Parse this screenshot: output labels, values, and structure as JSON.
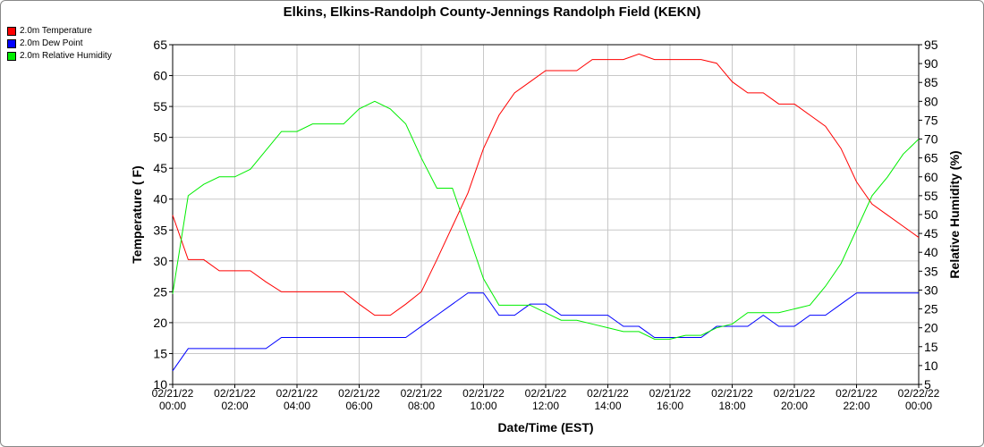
{
  "chart_data": {
    "type": "line",
    "title": "Elkins, Elkins-Randolph County-Jennings Randolph Field (KEKN)",
    "xlabel": "Date/Time (EST)",
    "ylabel": "Temperature ( F)",
    "y2label": "Relative Humidity (%)",
    "legend": "top-left",
    "grid": true,
    "x": [
      "2022-02-21T00:00",
      "2022-02-21T00:30",
      "2022-02-21T01:00",
      "2022-02-21T01:30",
      "2022-02-21T02:00",
      "2022-02-21T02:30",
      "2022-02-21T03:00",
      "2022-02-21T03:30",
      "2022-02-21T04:00",
      "2022-02-21T04:30",
      "2022-02-21T05:00",
      "2022-02-21T05:30",
      "2022-02-21T06:00",
      "2022-02-21T06:30",
      "2022-02-21T07:00",
      "2022-02-21T07:30",
      "2022-02-21T08:00",
      "2022-02-21T08:30",
      "2022-02-21T09:00",
      "2022-02-21T09:30",
      "2022-02-21T10:00",
      "2022-02-21T10:30",
      "2022-02-21T11:00",
      "2022-02-21T11:30",
      "2022-02-21T12:00",
      "2022-02-21T12:30",
      "2022-02-21T13:00",
      "2022-02-21T13:30",
      "2022-02-21T14:00",
      "2022-02-21T14:30",
      "2022-02-21T15:00",
      "2022-02-21T15:30",
      "2022-02-21T16:00",
      "2022-02-21T16:30",
      "2022-02-21T17:00",
      "2022-02-21T17:30",
      "2022-02-21T18:00",
      "2022-02-21T18:30",
      "2022-02-21T19:00",
      "2022-02-21T19:30",
      "2022-02-21T20:00",
      "2022-02-21T20:30",
      "2022-02-21T21:00",
      "2022-02-21T21:30",
      "2022-02-21T22:00",
      "2022-02-21T22:30",
      "2022-02-21T23:00",
      "2022-02-21T23:30",
      "2022-02-22T00:00"
    ],
    "series": [
      {
        "name": "2.0m Temperature",
        "color": "#ff0000",
        "axis": "y",
        "values": [
          37.4,
          30.2,
          30.2,
          28.4,
          28.4,
          28.4,
          26.6,
          25,
          25,
          25,
          25,
          25,
          23,
          21.2,
          21.2,
          23,
          25,
          30.2,
          35.6,
          41,
          48.2,
          53.6,
          57.2,
          59,
          60.8,
          60.8,
          60.8,
          62.6,
          62.6,
          62.6,
          63.5,
          62.6,
          62.6,
          62.6,
          62.6,
          62,
          59,
          57.2,
          57.2,
          55.4,
          55.4,
          53.6,
          51.8,
          48.2,
          42.8,
          39.2,
          37.4,
          35.6,
          33.8
        ]
      },
      {
        "name": "2.0m Dew Point",
        "color": "#0000ff",
        "axis": "y",
        "values": [
          12.2,
          15.8,
          15.8,
          15.8,
          15.8,
          15.8,
          15.8,
          17.6,
          17.6,
          17.6,
          17.6,
          17.6,
          17.6,
          17.6,
          17.6,
          17.6,
          19.4,
          21.2,
          23,
          24.8,
          24.8,
          21.2,
          21.2,
          23,
          23,
          21.2,
          21.2,
          21.2,
          21.2,
          19.4,
          19.4,
          17.6,
          17.6,
          17.6,
          17.6,
          19.4,
          19.4,
          19.4,
          21.2,
          19.4,
          19.4,
          21.2,
          21.2,
          23,
          24.8,
          24.8,
          24.8,
          24.8,
          24.8
        ]
      },
      {
        "name": "2.0m Relative Humidity",
        "color": "#00ee00",
        "axis": "y2",
        "values": [
          29,
          55,
          58,
          60,
          60,
          62,
          67,
          72,
          72,
          74,
          74,
          74,
          78,
          80,
          78,
          74,
          65,
          57,
          57,
          45,
          33,
          26,
          26,
          26,
          24,
          22,
          22,
          21,
          20,
          19,
          19,
          17,
          17,
          18,
          18,
          20,
          21,
          24,
          24,
          24,
          25,
          26,
          31,
          37,
          46,
          55,
          60,
          66,
          70
        ]
      }
    ],
    "xlim": [
      "2022-02-21T00:00",
      "2022-02-22T00:00"
    ],
    "xticks": [
      {
        "value": "2022-02-21T00:00",
        "label": "02/21/22\n00:00"
      },
      {
        "value": "2022-02-21T02:00",
        "label": "02/21/22\n02:00"
      },
      {
        "value": "2022-02-21T04:00",
        "label": "02/21/22\n04:00"
      },
      {
        "value": "2022-02-21T06:00",
        "label": "02/21/22\n06:00"
      },
      {
        "value": "2022-02-21T08:00",
        "label": "02/21/22\n08:00"
      },
      {
        "value": "2022-02-21T10:00",
        "label": "02/21/22\n10:00"
      },
      {
        "value": "2022-02-21T12:00",
        "label": "02/21/22\n12:00"
      },
      {
        "value": "2022-02-21T14:00",
        "label": "02/21/22\n14:00"
      },
      {
        "value": "2022-02-21T16:00",
        "label": "02/21/22\n16:00"
      },
      {
        "value": "2022-02-21T18:00",
        "label": "02/21/22\n18:00"
      },
      {
        "value": "2022-02-21T20:00",
        "label": "02/21/22\n20:00"
      },
      {
        "value": "2022-02-21T22:00",
        "label": "02/21/22\n22:00"
      },
      {
        "value": "2022-02-22T00:00",
        "label": "02/22/22\n00:00"
      }
    ],
    "ylim": [
      10,
      65
    ],
    "yticks": [
      10,
      15,
      20,
      25,
      30,
      35,
      40,
      45,
      50,
      55,
      60,
      65
    ],
    "y2lim": [
      5,
      95
    ],
    "y2ticks": [
      5,
      10,
      15,
      20,
      25,
      30,
      35,
      40,
      45,
      50,
      55,
      60,
      65,
      70,
      75,
      80,
      85,
      90,
      95
    ]
  }
}
